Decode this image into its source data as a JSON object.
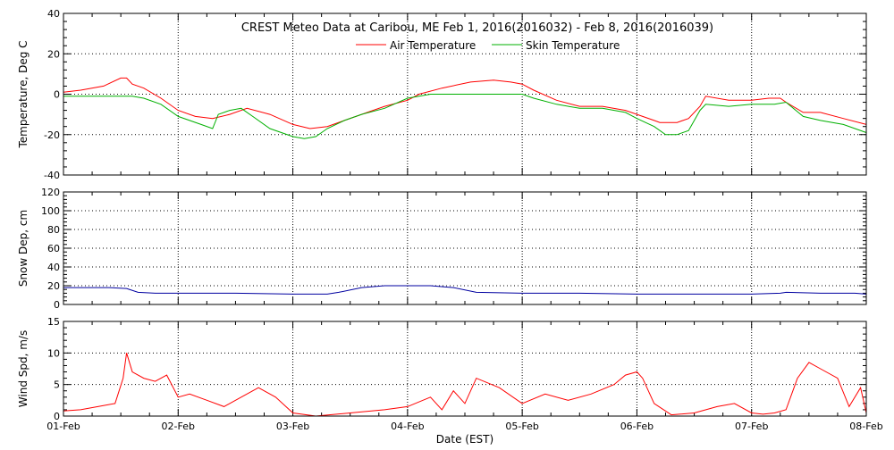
{
  "title": "CREST Meteo Data at Caribou, ME   Feb  1, 2016(2016032) - Feb  8, 2016(2016039)",
  "xlabel": "Date (EST)",
  "x_ticks": [
    "01-Feb",
    "02-Feb",
    "03-Feb",
    "04-Feb",
    "05-Feb",
    "06-Feb",
    "07-Feb",
    "08-Feb"
  ],
  "chart_data": [
    {
      "type": "line",
      "ylabel": "Temperature, Deg C",
      "xlim": [
        0,
        7
      ],
      "ylim": [
        -40,
        40
      ],
      "yticks": [
        -40,
        -20,
        0,
        20,
        40
      ],
      "grid": true,
      "legend": "top-center",
      "colors": {
        "Air Temperature": "#ff0000",
        "Skin Temperature": "#00b000"
      },
      "series": [
        {
          "name": "Air Temperature",
          "x": [
            0,
            0.15,
            0.35,
            0.5,
            0.55,
            0.6,
            0.7,
            0.85,
            1.0,
            1.15,
            1.3,
            1.45,
            1.6,
            1.8,
            2.0,
            2.15,
            2.3,
            2.45,
            2.6,
            2.8,
            3.0,
            3.1,
            3.3,
            3.55,
            3.75,
            3.9,
            4.0,
            4.1,
            4.3,
            4.5,
            4.7,
            4.9,
            5.0,
            5.15,
            5.2,
            5.35,
            5.45,
            5.55,
            5.6,
            5.8,
            6.0,
            6.15,
            6.25,
            6.3,
            6.45,
            6.6,
            6.8,
            7.0
          ],
          "y": [
            1,
            2,
            4,
            8,
            8,
            5,
            3,
            -2,
            -8,
            -11,
            -12,
            -10,
            -7,
            -10,
            -15,
            -17,
            -16,
            -13,
            -10,
            -6,
            -3,
            0,
            3,
            6,
            7,
            6,
            5,
            2,
            -3,
            -6,
            -6,
            -8,
            -10,
            -13,
            -14,
            -14,
            -12,
            -6,
            -1,
            -3,
            -3,
            -2,
            -2,
            -4,
            -9,
            -9,
            -12,
            -15
          ]
        },
        {
          "name": "Skin Temperature",
          "x": [
            0,
            0.3,
            0.6,
            0.7,
            0.85,
            1.0,
            1.2,
            1.3,
            1.35,
            1.45,
            1.55,
            1.65,
            1.8,
            2.0,
            2.1,
            2.2,
            2.3,
            2.45,
            2.6,
            2.8,
            3.0,
            3.2,
            3.5,
            3.8,
            4.0,
            4.1,
            4.3,
            4.5,
            4.7,
            4.9,
            5.0,
            5.15,
            5.25,
            5.35,
            5.45,
            5.55,
            5.6,
            5.8,
            6.0,
            6.2,
            6.3,
            6.45,
            6.6,
            6.8,
            7.0
          ],
          "y": [
            -1,
            -1,
            -1,
            -2,
            -5,
            -11,
            -15,
            -17,
            -10,
            -8,
            -7,
            -11,
            -17,
            -21,
            -22,
            -21,
            -17,
            -13,
            -10,
            -7,
            -2,
            0,
            0,
            0,
            0,
            -2,
            -5,
            -7,
            -7,
            -9,
            -12,
            -16,
            -20,
            -20,
            -18,
            -8,
            -5,
            -6,
            -5,
            -5,
            -4,
            -11,
            -13,
            -15,
            -19
          ]
        }
      ]
    },
    {
      "type": "line",
      "ylabel": "Snow Dep, cm",
      "xlim": [
        0,
        7
      ],
      "ylim": [
        0,
        120
      ],
      "yticks": [
        0,
        20,
        40,
        60,
        80,
        100,
        120
      ],
      "grid": true,
      "colors": {
        "Snow Depth": "#0000a0"
      },
      "series": [
        {
          "x": [
            0,
            0.4,
            0.55,
            0.65,
            0.8,
            1.0,
            1.5,
            2.0,
            2.3,
            2.4,
            2.6,
            2.8,
            3.0,
            3.2,
            3.4,
            3.6,
            4.0,
            4.5,
            5.0,
            5.5,
            6.0,
            6.25,
            6.3,
            6.6,
            6.9,
            7.0
          ],
          "y": [
            18,
            18,
            17,
            13,
            12,
            12,
            12,
            11,
            11,
            13,
            18,
            20,
            20,
            20,
            18,
            13,
            12,
            12,
            11,
            11,
            11,
            12,
            13,
            12,
            12,
            11
          ]
        }
      ]
    },
    {
      "type": "line",
      "ylabel": "Wind Spd, m/s",
      "xlim": [
        0,
        7
      ],
      "ylim": [
        0,
        15
      ],
      "yticks": [
        0,
        5,
        10,
        15
      ],
      "grid": true,
      "colors": {
        "Wind Speed": "#ff0000"
      },
      "series": [
        {
          "x": [
            0,
            0.15,
            0.3,
            0.45,
            0.52,
            0.55,
            0.6,
            0.7,
            0.8,
            0.9,
            1.0,
            1.1,
            1.25,
            1.4,
            1.55,
            1.7,
            1.85,
            2.0,
            2.2,
            2.5,
            2.8,
            3.0,
            3.2,
            3.3,
            3.4,
            3.5,
            3.6,
            3.8,
            4.0,
            4.2,
            4.4,
            4.6,
            4.8,
            4.9,
            5.0,
            5.05,
            5.15,
            5.3,
            5.5,
            5.7,
            5.85,
            6.0,
            6.1,
            6.2,
            6.3,
            6.4,
            6.5,
            6.6,
            6.75,
            6.85,
            6.95,
            7.0
          ],
          "y": [
            0.8,
            1,
            1.5,
            2,
            6,
            10,
            7,
            6,
            5.5,
            6.5,
            3,
            3.5,
            2.5,
            1.5,
            3,
            4.5,
            3,
            0.5,
            0,
            0.5,
            1,
            1.5,
            3,
            1,
            4,
            2,
            6,
            4.5,
            2,
            3.5,
            2.5,
            3.5,
            5,
            6.5,
            7,
            6,
            2,
            0.2,
            0.5,
            1.5,
            2,
            0.5,
            0.3,
            0.5,
            1,
            6,
            8.5,
            7.5,
            6,
            1.5,
            4.5,
            0.5
          ]
        }
      ]
    }
  ]
}
